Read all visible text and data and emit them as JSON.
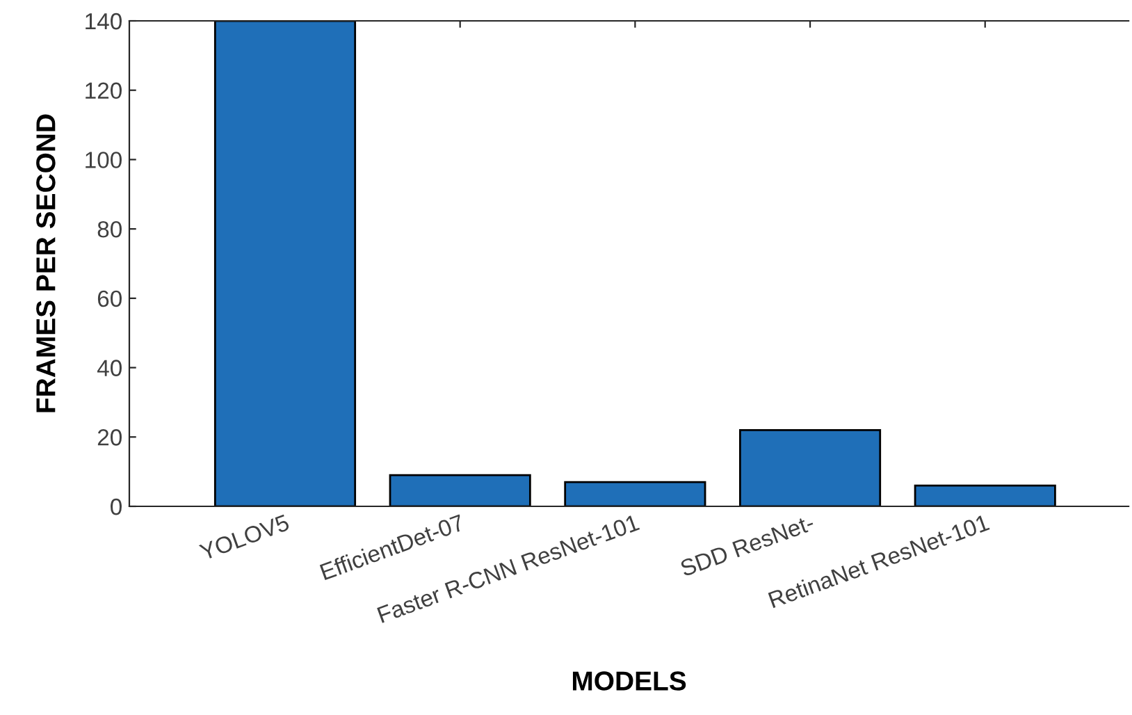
{
  "chart_data": {
    "type": "bar",
    "xlabel": "MODELS",
    "ylabel": "FRAMES PER SECOND",
    "categories": [
      "YOLOV5",
      "EfficientDet-07",
      "Faster R-CNN ResNet-101",
      "SDD ResNet-",
      "RetinaNet ResNet-101"
    ],
    "values": [
      140,
      9,
      7,
      22,
      6
    ],
    "color": "#1f6fb8",
    "ylim": [
      0,
      140
    ],
    "yticks": [
      0,
      20,
      40,
      60,
      80,
      100,
      120,
      140
    ],
    "grid": false
  }
}
